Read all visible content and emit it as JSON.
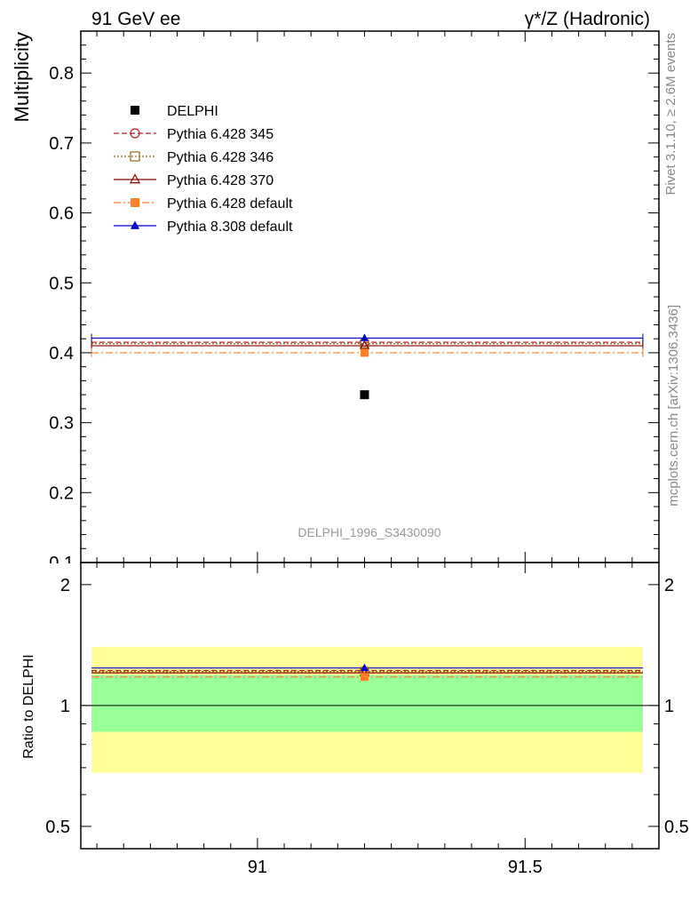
{
  "header": {
    "left": "91 GeV ee",
    "right": "γ*/Z (Hadronic)"
  },
  "side_texts": {
    "rivet": "Rivet 3.1.10, ≥ 2.6M events",
    "mcplots": "mcplots.cern.ch [arXiv:1306.3436]"
  },
  "watermark": "DELPHI_1996_S3430090",
  "chart_data": [
    {
      "type": "scatter",
      "panel": "main",
      "ylabel": "Multiplicity",
      "xlim": [
        90.67,
        91.75
      ],
      "ylim": [
        0.1,
        0.86
      ],
      "yticks": [
        0.1,
        0.2,
        0.3,
        0.4,
        0.5,
        0.6,
        0.7,
        0.8
      ],
      "ytick_labels": [
        "0.1",
        "0.2",
        "0.3",
        "0.4",
        "0.5",
        "0.6",
        "0.7",
        "0.8"
      ],
      "bin": [
        90.69,
        91.72
      ],
      "x_point": 91.2,
      "legend_position": "top-left",
      "series": [
        {
          "name": "DELPHI",
          "y": 0.34,
          "style": "data",
          "marker": "square",
          "color": "#000000"
        },
        {
          "name": "Pythia 6.428 345",
          "y": 0.415,
          "marker": "circle-open",
          "line": "dashed",
          "color": "#b22222"
        },
        {
          "name": "Pythia 6.428 346",
          "y": 0.413,
          "marker": "square-open",
          "line": "dotted",
          "color": "#8b6914"
        },
        {
          "name": "Pythia 6.428 370",
          "y": 0.41,
          "marker": "triangle-open",
          "line": "solid",
          "color": "#8b0000"
        },
        {
          "name": "Pythia 6.428 default",
          "y": 0.4,
          "marker": "square",
          "line": "dashdot",
          "color": "#ff7f2a"
        },
        {
          "name": "Pythia 8.308 default",
          "y": 0.421,
          "marker": "triangle",
          "line": "solid",
          "color": "#0000cc"
        }
      ]
    },
    {
      "type": "scatter",
      "panel": "ratio",
      "ylabel": "Ratio to DELPHI",
      "xlim": [
        90.67,
        91.75
      ],
      "ylim": [
        0.44,
        2.27
      ],
      "log_scale": true,
      "yticks": [
        0.5,
        1,
        2
      ],
      "ytick_labels": [
        "0.5",
        "1",
        "2"
      ],
      "xticks": [
        91,
        91.5
      ],
      "xtick_labels": [
        "91",
        "91.5"
      ],
      "bands": [
        {
          "ymin": 0.68,
          "ymax": 1.4,
          "color": "#ffff99"
        },
        {
          "ymin": 0.86,
          "ymax": 1.19,
          "color": "#99ff99"
        }
      ],
      "reference": 1,
      "series": [
        {
          "name": "Pythia 6.428 345",
          "y": 1.222,
          "color": "#b22222"
        },
        {
          "name": "Pythia 6.428 346",
          "y": 1.215,
          "color": "#8b6914"
        },
        {
          "name": "Pythia 6.428 370",
          "y": 1.206,
          "color": "#8b0000"
        },
        {
          "name": "Pythia 6.428 default",
          "y": 1.178,
          "color": "#ff7f2a"
        },
        {
          "name": "Pythia 8.308 default",
          "y": 1.24,
          "color": "#0000cc"
        }
      ]
    }
  ]
}
